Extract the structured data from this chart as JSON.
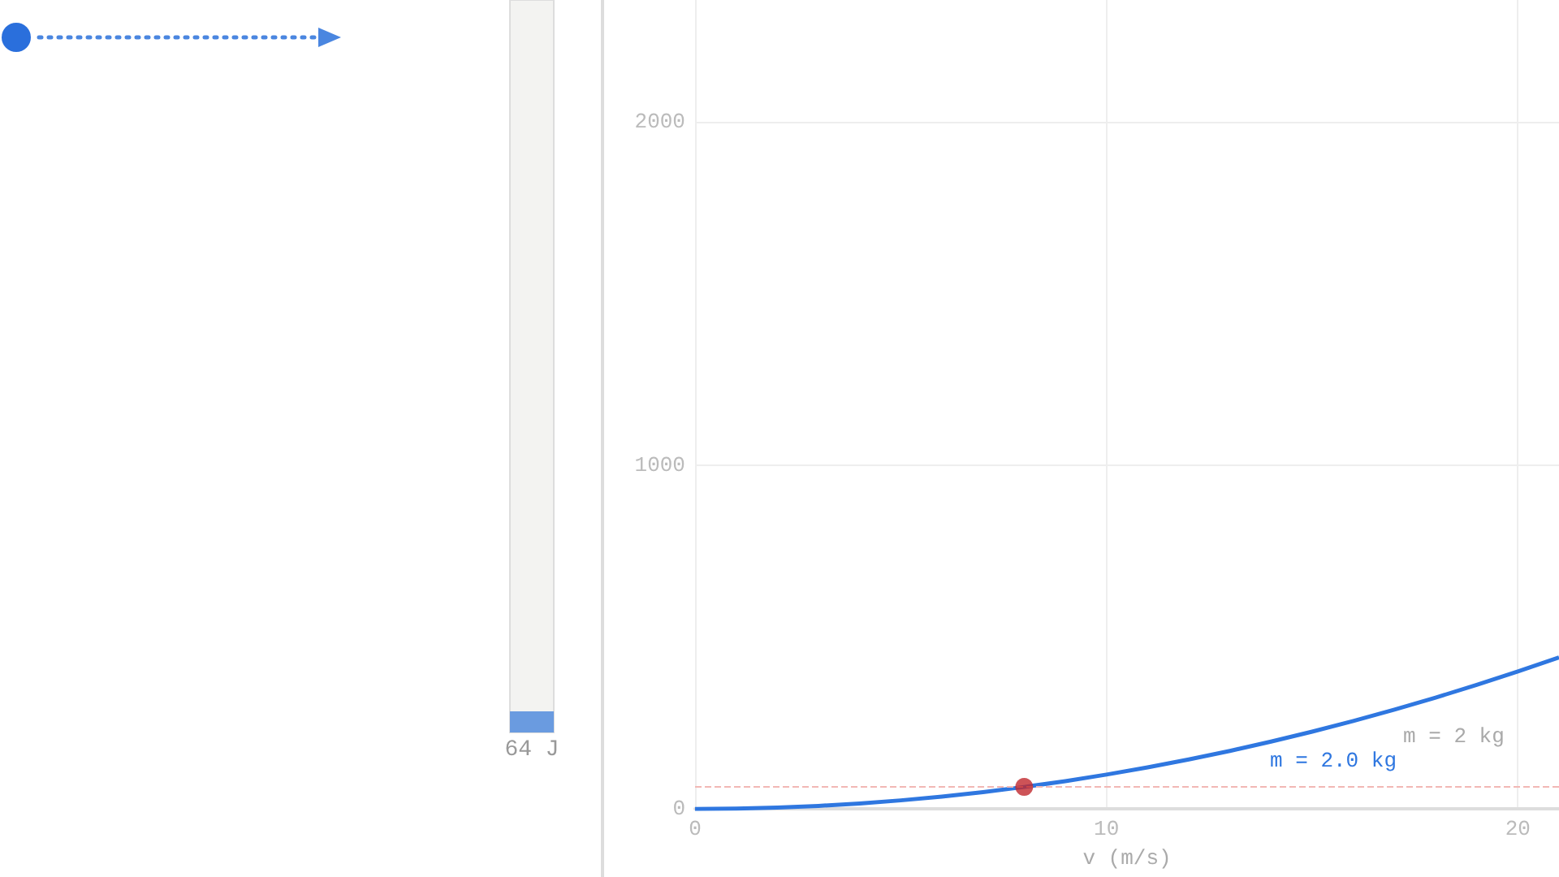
{
  "chart_data": [
    {
      "type": "bar",
      "categories": [
        null
      ],
      "values": [
        64
      ],
      "value_labels": [
        "64 J"
      ],
      "color": "#6a9be0",
      "ylim": [
        0,
        2220
      ]
    },
    {
      "type": "line",
      "xlabel": "v (m/s)",
      "x": [
        0,
        1,
        2,
        3,
        4,
        5,
        6,
        7,
        8,
        9,
        10,
        11,
        12,
        13,
        14,
        15,
        16,
        17,
        18,
        19,
        20,
        21
      ],
      "xlim": [
        0,
        21
      ],
      "ylim": [
        0,
        2354
      ],
      "xticks": [
        0,
        10,
        20
      ],
      "yticks": [
        0,
        1000,
        2000
      ],
      "grid": true,
      "marker": "none",
      "series": [
        {
          "color": "#2f77e0",
          "values": [
            0,
            1,
            4,
            9,
            16,
            25,
            36,
            49,
            64,
            81,
            100,
            121,
            144,
            169,
            196,
            225,
            256,
            289,
            324,
            361,
            400,
            441
          ]
        },
        {
          "type": "scatter",
          "color": "#c0282d",
          "x": [
            8
          ],
          "values": [
            64
          ],
          "marker": "circle"
        }
      ],
      "ref_lines": [
        {
          "axis": "y",
          "value": 64,
          "color": "#f2b8b5",
          "line_style": "dashed"
        }
      ],
      "annotations": [
        "m = 2.0 kg",
        "m = 2 kg"
      ]
    }
  ]
}
